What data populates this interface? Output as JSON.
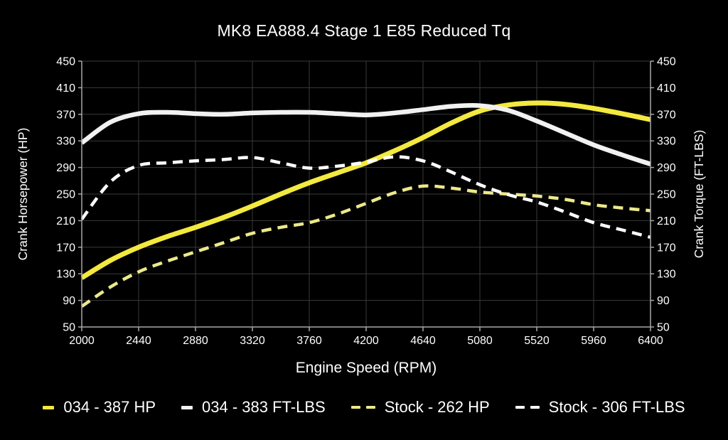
{
  "title": "MK8 EA888.4 Stage 1 E85 Reduced Tq",
  "colors": {
    "background": "#000000",
    "grid": "#3a3a3a",
    "axis": "#a8a8a8",
    "text": "#ffffff",
    "accent_yellow": "#f3e93f",
    "accent_pale_yellow": "#ebe98a",
    "accent_white": "#f1f1f1"
  },
  "chart_data": {
    "type": "line",
    "title": "MK8 EA888.4 Stage 1 E85 Reduced Tq",
    "xlabel": "Engine Speed (RPM)",
    "ylabel_left": "Crank Horsepower (HP)",
    "ylabel_right": "Crank Torque (FT-LBS)",
    "xlim": [
      2000,
      6400
    ],
    "ylim": [
      50,
      450
    ],
    "x_ticks": [
      2000,
      2440,
      2880,
      3320,
      3760,
      4200,
      4640,
      5080,
      5520,
      5960,
      6400
    ],
    "y_ticks_left": [
      450,
      410,
      370,
      330,
      290,
      250,
      210,
      170,
      130,
      90,
      50
    ],
    "y_ticks_right": [
      450,
      410,
      370,
      330,
      290,
      250,
      210,
      170,
      130,
      90,
      50
    ],
    "grid": true,
    "legend_position": "bottom",
    "x": [
      2000,
      2220,
      2440,
      2660,
      2880,
      3100,
      3320,
      3540,
      3760,
      3980,
      4200,
      4420,
      4640,
      4860,
      5080,
      5300,
      5520,
      5740,
      5960,
      6180,
      6400
    ],
    "series": [
      {
        "name": "034 - 387 HP",
        "color": "#f3e93f",
        "style": "solid",
        "width": 7,
        "axis": "left",
        "peak": 387,
        "values": [
          124,
          150,
          170,
          186,
          200,
          215,
          232,
          250,
          267,
          282,
          297,
          315,
          335,
          357,
          375,
          384,
          387,
          385,
          379,
          371,
          362
        ]
      },
      {
        "name": "034 - 383 FT-LBS",
        "color": "#f1f1f1",
        "style": "solid",
        "width": 6.5,
        "axis": "right",
        "peak": 383,
        "values": [
          327,
          358,
          371,
          373,
          371,
          370,
          372,
          373,
          373,
          371,
          369,
          372,
          377,
          382,
          383,
          376,
          360,
          342,
          324,
          309,
          295
        ]
      },
      {
        "name": "Stock - 262 HP",
        "color": "#ebe98a",
        "style": "dashed",
        "width": 4.5,
        "axis": "left",
        "peak": 262,
        "values": [
          81,
          110,
          133,
          149,
          163,
          177,
          191,
          200,
          207,
          220,
          236,
          252,
          262,
          259,
          253,
          250,
          247,
          242,
          234,
          229,
          225
        ]
      },
      {
        "name": "Stock - 306 FT-LBS",
        "color": "#ffffff",
        "style": "dashed",
        "width": 4.5,
        "axis": "right",
        "peak": 306,
        "values": [
          212,
          268,
          293,
          297,
          300,
          302,
          305,
          297,
          289,
          292,
          298,
          306,
          300,
          283,
          264,
          249,
          238,
          223,
          207,
          196,
          185
        ]
      }
    ]
  }
}
